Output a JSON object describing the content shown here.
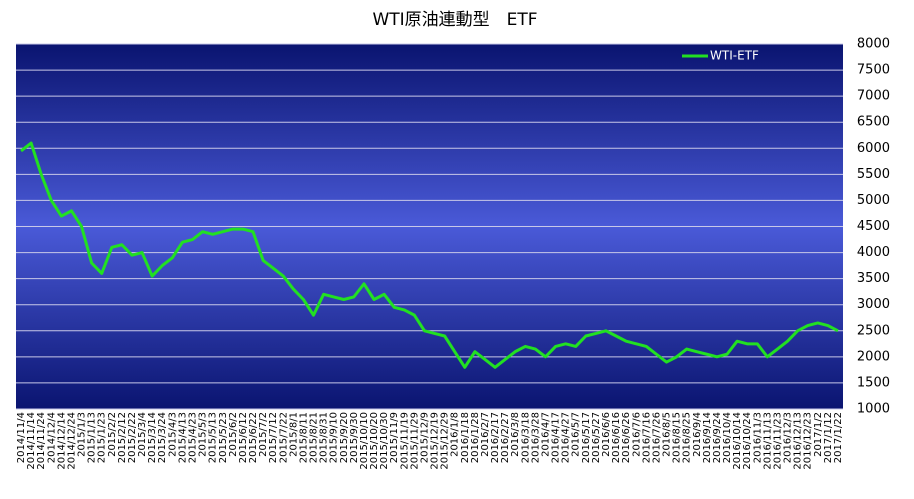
{
  "chart_data": {
    "type": "line",
    "title": "WTI原油連動型　ETF",
    "categories": [
      "2014/11/4",
      "2014/11/14",
      "2014/11/24",
      "2014/12/4",
      "2014/12/14",
      "2014/12/24",
      "2015/1/3",
      "2015/1/13",
      "2015/1/23",
      "2015/2/2",
      "2015/2/12",
      "2015/2/22",
      "2015/3/4",
      "2015/3/14",
      "2015/3/24",
      "2015/4/3",
      "2015/4/13",
      "2015/4/23",
      "2015/5/3",
      "2015/5/13",
      "2015/5/23",
      "2015/6/2",
      "2015/6/12",
      "2015/6/22",
      "2015/7/2",
      "2015/7/12",
      "2015/7/22",
      "2015/8/1",
      "2015/8/11",
      "2015/8/21",
      "2015/8/31",
      "2015/9/10",
      "2015/9/20",
      "2015/9/30",
      "2015/10/10",
      "2015/10/20",
      "2015/10/30",
      "2015/11/9",
      "2015/11/19",
      "2015/11/29",
      "2015/12/9",
      "2015/12/19",
      "2015/12/29",
      "2016/1/8",
      "2016/1/18",
      "2016/1/28",
      "2016/2/7",
      "2016/2/17",
      "2016/2/27",
      "2016/3/8",
      "2016/3/18",
      "2016/3/28",
      "2016/4/7",
      "2016/4/17",
      "2016/4/27",
      "2016/5/7",
      "2016/5/17",
      "2016/5/27",
      "2016/6/6",
      "2016/6/16",
      "2016/6/26",
      "2016/7/6",
      "2016/7/16",
      "2016/7/26",
      "2016/8/5",
      "2016/8/15",
      "2016/8/25",
      "2016/9/4",
      "2016/9/14",
      "2016/9/24",
      "2016/10/4",
      "2016/10/14",
      "2016/10/24",
      "2016/11/3",
      "2016/11/13",
      "2016/11/23",
      "2016/12/3",
      "2016/12/13",
      "2016/12/23",
      "2017/1/2",
      "2017/1/12",
      "2017/1/22"
    ],
    "series": [
      {
        "name": "WTI-ETF",
        "color": "#22e022",
        "values": [
          5950,
          6100,
          5500,
          5000,
          4700,
          4800,
          4500,
          3800,
          3600,
          4100,
          4150,
          3950,
          4000,
          3550,
          3750,
          3900,
          4200,
          4250,
          4400,
          4350,
          4400,
          4450,
          4450,
          4400,
          3850,
          3700,
          3550,
          3300,
          3100,
          2800,
          3200,
          3150,
          3100,
          3150,
          3400,
          3100,
          3200,
          2950,
          2900,
          2800,
          2500,
          2450,
          2400,
          2100,
          1800,
          2100,
          1950,
          1800,
          1950,
          2100,
          2200,
          2150,
          2000,
          2200,
          2250,
          2200,
          2400,
          2450,
          2500,
          2400,
          2300,
          2250,
          2200,
          2050,
          1900,
          2000,
          2150,
          2100,
          2050,
          2000,
          2050,
          2300,
          2250,
          2250,
          2000,
          2150,
          2300,
          2500,
          2600,
          2650,
          2600,
          2500
        ]
      }
    ],
    "ylim": [
      1000,
      8000
    ],
    "yticks": [
      1000,
      1500,
      2000,
      2500,
      3000,
      3500,
      4000,
      4500,
      5000,
      5500,
      6000,
      6500,
      7000,
      7500,
      8000
    ],
    "grid": true,
    "legend": "upper right"
  }
}
